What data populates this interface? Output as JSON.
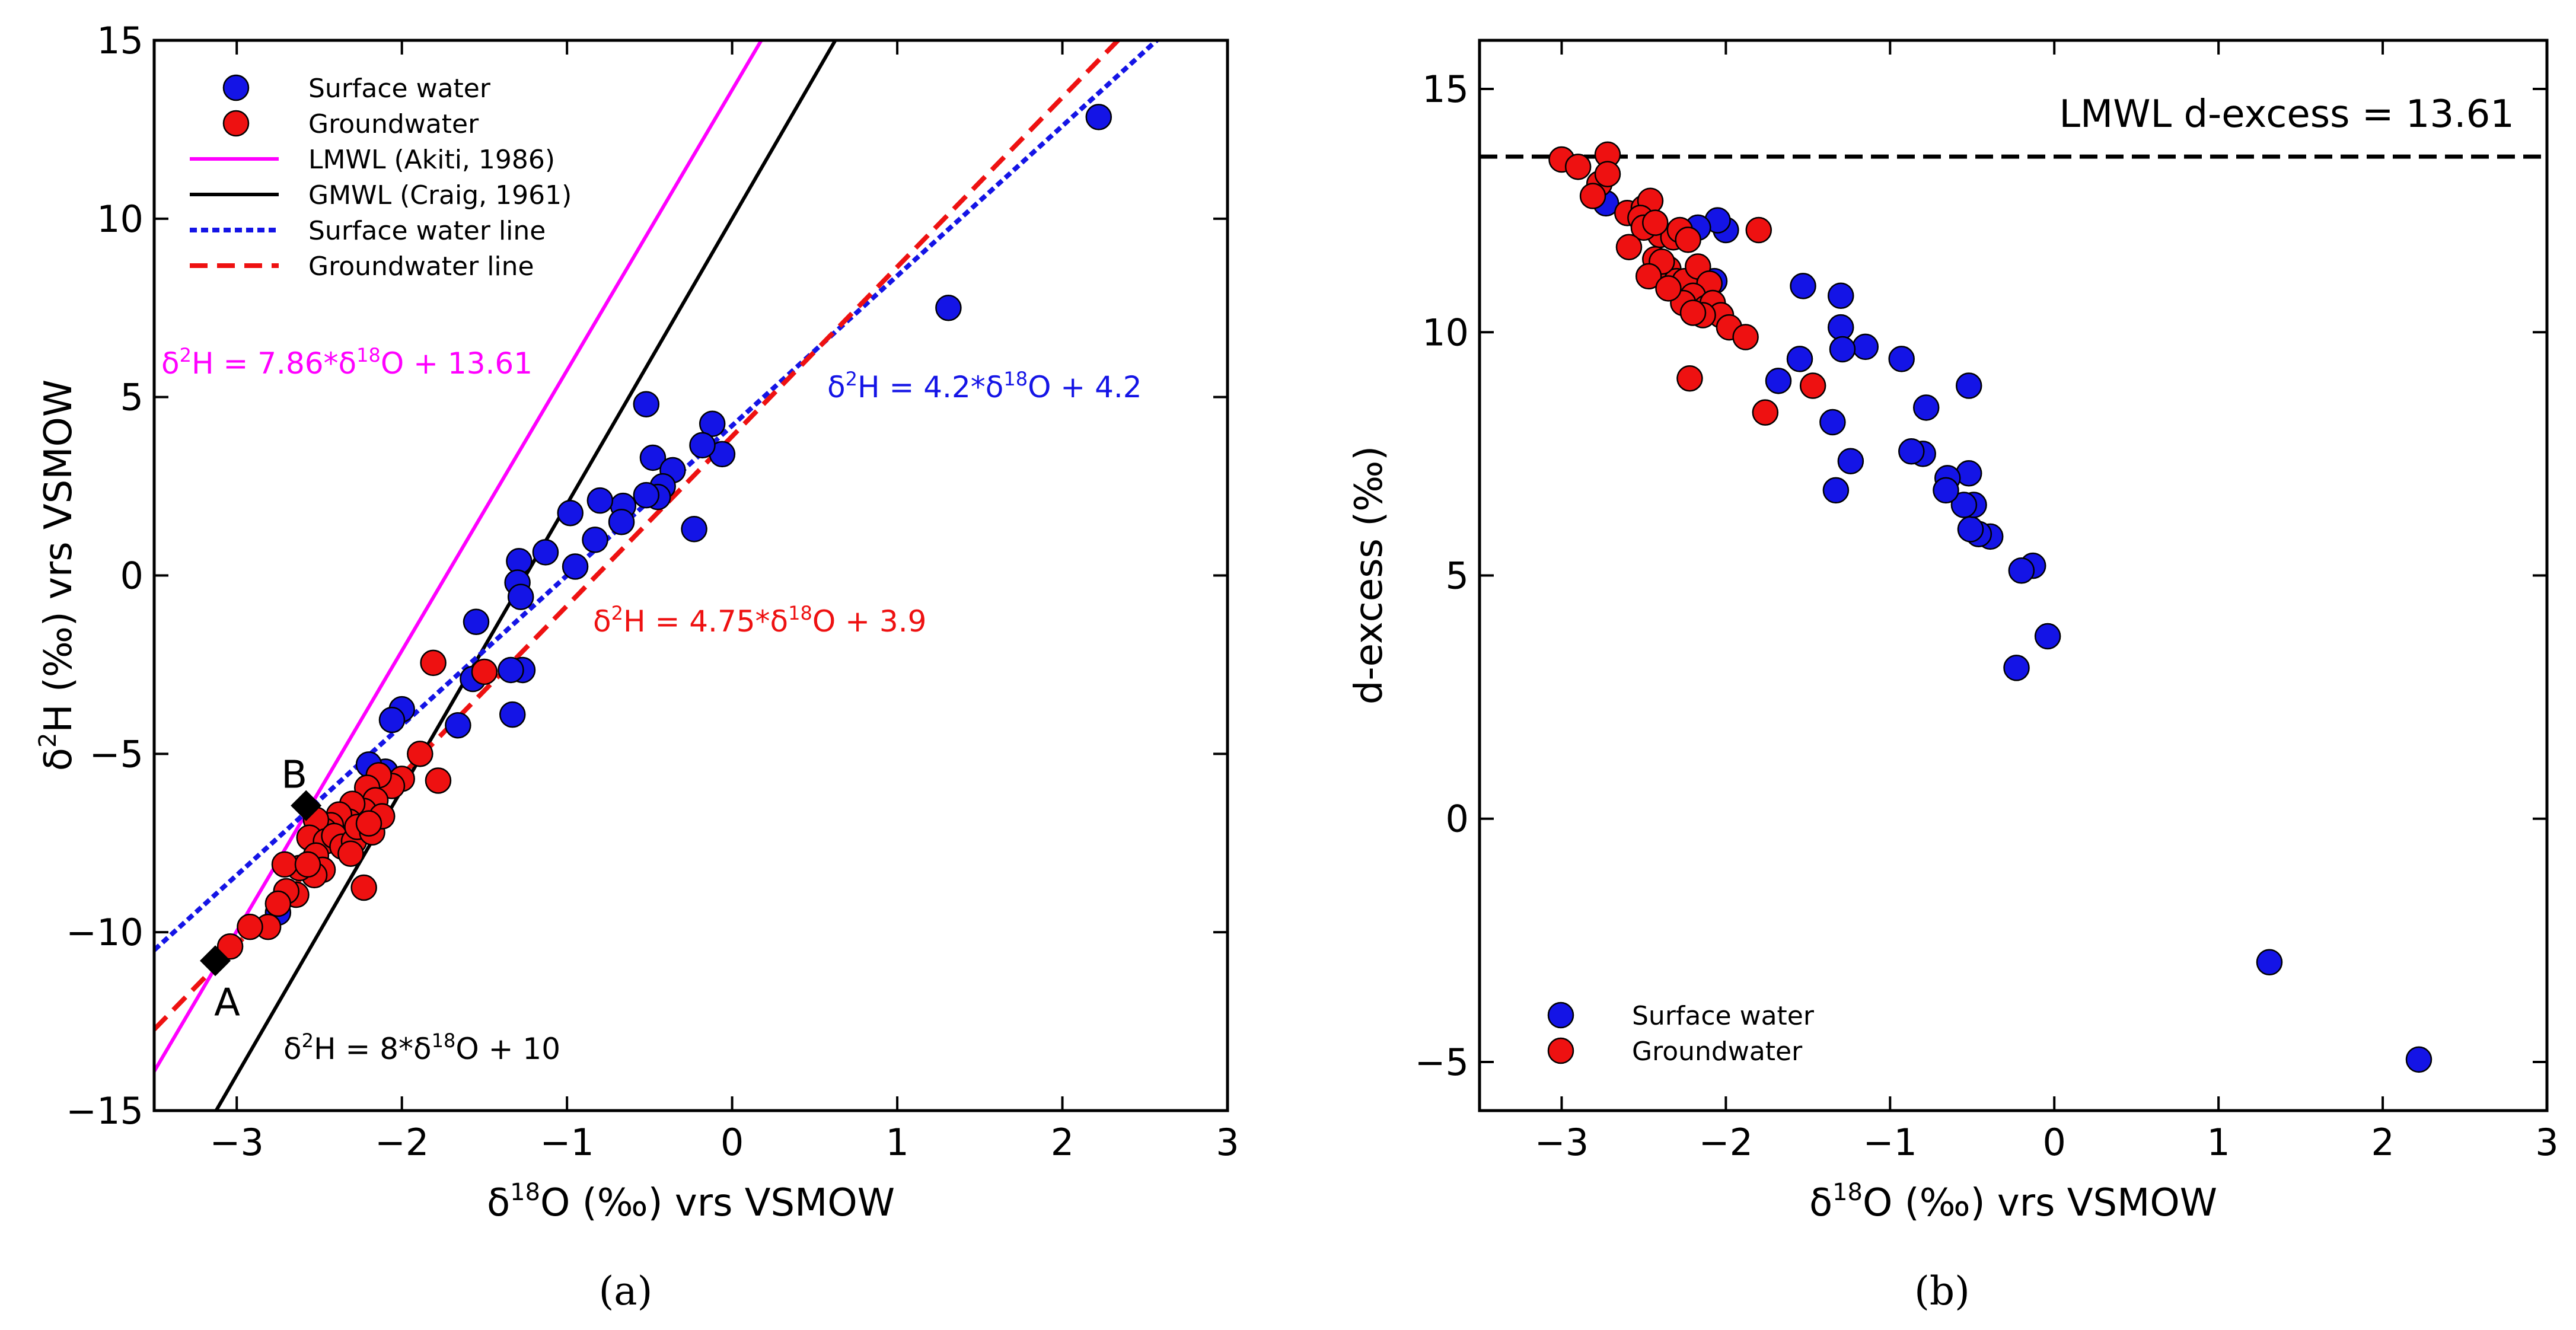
{
  "colors": {
    "surface": "#1414e6",
    "ground": "#ee1111",
    "lmwl": "#ff00ff",
    "gmwl": "#000000",
    "surface_line": "#1414e6",
    "ground_line": "#ee1111"
  },
  "chart_data": [
    {
      "type": "scatter",
      "panel": "a",
      "panel_label": "(a)",
      "xlabel": "δ18O (‰) vrs VSMOW",
      "ylabel": "δ2H (‰) vrs VSMOW",
      "xlim": [
        -3.5,
        3
      ],
      "ylim": [
        -15,
        15
      ],
      "xticks": [
        -3,
        -2,
        -1,
        0,
        1,
        2,
        3
      ],
      "yticks": [
        -15,
        -10,
        -5,
        0,
        5,
        10,
        15
      ],
      "xtick_labels": [
        "−3",
        "−2",
        "−1",
        "0",
        "1",
        "2",
        "3"
      ],
      "ytick_labels": [
        "−15",
        "−10",
        "−5",
        "0",
        "5",
        "10",
        "15"
      ],
      "legend_position": "top-left",
      "legend": [
        "Surface water",
        "Groundwater",
        "LMWL (Akiti, 1986)",
        "GMWL (Craig, 1961)",
        "Surface water line",
        "Groundwater line"
      ],
      "lines": [
        {
          "name": "LMWL (Akiti, 1986)",
          "slope": 7.86,
          "intercept": 13.61,
          "style": "solid",
          "color": "#ff00ff"
        },
        {
          "name": "GMWL (Craig, 1961)",
          "slope": 8,
          "intercept": 10,
          "style": "solid",
          "color": "#000000"
        },
        {
          "name": "Surface water line",
          "slope": 4.2,
          "intercept": 4.2,
          "style": "dotted",
          "color": "#1414e6"
        },
        {
          "name": "Groundwater line",
          "slope": 4.75,
          "intercept": 3.9,
          "style": "dashed",
          "color": "#ee1111"
        }
      ],
      "annotations": {
        "lmwl_eq": {
          "pre": "δ",
          "sup1": "2",
          "mid": "H = 7.86*δ",
          "sup2": "18",
          "post": "O + 13.61"
        },
        "sw_eq": {
          "pre": "δ",
          "sup1": "2",
          "mid": "H = 4.2*δ",
          "sup2": "18",
          "post": "O + 4.2"
        },
        "gw_eq": {
          "pre": "δ",
          "sup1": "2",
          "mid": "H = 4.75*δ",
          "sup2": "18",
          "post": "O + 3.9"
        },
        "gmwl_eq": {
          "pre": "δ",
          "sup1": "2",
          "mid": "H = 8*δ",
          "sup2": "18",
          "post": "O + 10"
        }
      },
      "markers": [
        {
          "label": "A",
          "x": -3.13,
          "y": -10.8
        },
        {
          "label": "B",
          "x": -2.58,
          "y": -6.45
        }
      ],
      "series": [
        {
          "name": "Surface water",
          "points": [
            [
              2.22,
              12.85
            ],
            [
              1.31,
              7.5
            ],
            [
              -0.12,
              4.25
            ],
            [
              -0.06,
              3.4
            ],
            [
              -0.18,
              3.65
            ],
            [
              -0.52,
              4.8
            ],
            [
              -0.48,
              3.3
            ],
            [
              -0.36,
              2.95
            ],
            [
              -0.42,
              2.5
            ],
            [
              -0.45,
              2.2
            ],
            [
              -0.52,
              2.25
            ],
            [
              -0.66,
              1.95
            ],
            [
              -0.8,
              2.1
            ],
            [
              -0.67,
              1.5
            ],
            [
              -0.23,
              1.3
            ],
            [
              -0.98,
              1.75
            ],
            [
              -0.83,
              1.0
            ],
            [
              -1.13,
              0.65
            ],
            [
              -0.95,
              0.25
            ],
            [
              -1.29,
              0.4
            ],
            [
              -1.3,
              -0.2
            ],
            [
              -1.28,
              -0.6
            ],
            [
              -1.27,
              -2.65
            ],
            [
              -1.34,
              -2.65
            ],
            [
              -1.33,
              -3.9
            ],
            [
              -1.55,
              -1.3
            ],
            [
              -1.57,
              -2.9
            ],
            [
              -1.66,
              -4.2
            ],
            [
              -2.0,
              -3.75
            ],
            [
              -2.06,
              -4.05
            ],
            [
              -2.1,
              -5.5
            ],
            [
              -2.2,
              -5.3
            ],
            [
              -2.75,
              -9.45
            ]
          ]
        },
        {
          "name": "Groundwater",
          "points": [
            [
              -1.81,
              -2.45
            ],
            [
              -1.5,
              -2.7
            ],
            [
              -1.78,
              -5.75
            ],
            [
              -1.89,
              -5.0
            ],
            [
              -2.0,
              -5.7
            ],
            [
              -2.06,
              -5.9
            ],
            [
              -2.14,
              -5.6
            ],
            [
              -2.21,
              -5.95
            ],
            [
              -2.16,
              -6.3
            ],
            [
              -2.23,
              -6.6
            ],
            [
              -2.3,
              -6.4
            ],
            [
              -2.32,
              -6.9
            ],
            [
              -2.38,
              -6.7
            ],
            [
              -2.43,
              -7.0
            ],
            [
              -2.47,
              -7.15
            ],
            [
              -2.52,
              -6.85
            ],
            [
              -2.56,
              -7.35
            ],
            [
              -2.46,
              -7.45
            ],
            [
              -2.41,
              -7.3
            ],
            [
              -2.36,
              -7.6
            ],
            [
              -2.29,
              -7.45
            ],
            [
              -2.31,
              -7.8
            ],
            [
              -2.27,
              -7.05
            ],
            [
              -2.18,
              -7.2
            ],
            [
              -2.12,
              -6.75
            ],
            [
              -2.2,
              -6.95
            ],
            [
              -2.52,
              -7.85
            ],
            [
              -2.48,
              -8.25
            ],
            [
              -2.53,
              -8.4
            ],
            [
              -2.62,
              -8.2
            ],
            [
              -2.71,
              -8.1
            ],
            [
              -2.57,
              -8.1
            ],
            [
              -2.23,
              -8.75
            ],
            [
              -2.64,
              -8.95
            ],
            [
              -2.7,
              -8.85
            ],
            [
              -2.75,
              -9.2
            ],
            [
              -2.81,
              -9.85
            ],
            [
              -2.92,
              -9.85
            ],
            [
              -3.04,
              -10.4
            ]
          ]
        }
      ]
    },
    {
      "type": "scatter",
      "panel": "b",
      "panel_label": "(b)",
      "xlabel": "δ18O (‰) vrs VSMOW",
      "ylabel": "d-excess (‰)",
      "xlim": [
        -3.5,
        3
      ],
      "ylim": [
        -6,
        16
      ],
      "xticks": [
        -3,
        -2,
        -1,
        0,
        1,
        2,
        3
      ],
      "yticks": [
        -5,
        0,
        5,
        10,
        15
      ],
      "xtick_labels": [
        "−3",
        "−2",
        "−1",
        "0",
        "1",
        "2",
        "3"
      ],
      "ytick_labels": [
        "−5",
        "0",
        "5",
        "10",
        "15"
      ],
      "legend_position": "bottom-left",
      "legend": [
        "Surface water",
        "Groundwater"
      ],
      "hline": {
        "y": 13.61,
        "style": "dashed",
        "color": "#000000",
        "label": "LMWL d-excess = 13.61"
      },
      "series": [
        {
          "name": "Surface water",
          "points": [
            [
              2.22,
              -4.95
            ],
            [
              1.31,
              -2.95
            ],
            [
              -0.04,
              3.75
            ],
            [
              -0.23,
              3.1
            ],
            [
              -0.13,
              5.2
            ],
            [
              -0.2,
              5.1
            ],
            [
              -0.39,
              5.8
            ],
            [
              -0.46,
              5.85
            ],
            [
              -0.51,
              5.95
            ],
            [
              -0.49,
              6.45
            ],
            [
              -0.55,
              6.45
            ],
            [
              -0.52,
              7.1
            ],
            [
              -0.52,
              8.9
            ],
            [
              -0.65,
              7.0
            ],
            [
              -0.66,
              6.75
            ],
            [
              -0.8,
              7.5
            ],
            [
              -0.87,
              7.55
            ],
            [
              -0.78,
              8.45
            ],
            [
              -0.93,
              9.45
            ],
            [
              -1.15,
              9.7
            ],
            [
              -1.3,
              10.1
            ],
            [
              -1.29,
              9.65
            ],
            [
              -1.3,
              10.75
            ],
            [
              -1.53,
              10.95
            ],
            [
              -1.55,
              9.45
            ],
            [
              -1.68,
              9.0
            ],
            [
              -1.24,
              7.35
            ],
            [
              -1.33,
              6.75
            ],
            [
              -1.35,
              8.15
            ],
            [
              -2.0,
              12.1
            ],
            [
              -2.07,
              11.05
            ],
            [
              -2.05,
              12.3
            ],
            [
              -2.17,
              12.15
            ],
            [
              -2.73,
              12.65
            ]
          ]
        },
        {
          "name": "Groundwater",
          "points": [
            [
              -3.0,
              13.55
            ],
            [
              -2.9,
              13.4
            ],
            [
              -2.72,
              13.65
            ],
            [
              -2.77,
              13.05
            ],
            [
              -2.72,
              13.25
            ],
            [
              -2.81,
              12.8
            ],
            [
              -2.6,
              12.45
            ],
            [
              -2.5,
              12.55
            ],
            [
              -2.46,
              12.7
            ],
            [
              -2.52,
              12.35
            ],
            [
              -2.4,
              12.0
            ],
            [
              -2.32,
              11.95
            ],
            [
              -2.28,
              12.1
            ],
            [
              -2.23,
              11.9
            ],
            [
              -2.5,
              12.15
            ],
            [
              -2.59,
              11.75
            ],
            [
              -2.43,
              11.5
            ],
            [
              -2.35,
              11.3
            ],
            [
              -2.3,
              11.05
            ],
            [
              -2.25,
              11.05
            ],
            [
              -2.17,
              11.35
            ],
            [
              -2.1,
              11.0
            ],
            [
              -2.2,
              10.75
            ],
            [
              -2.26,
              10.6
            ],
            [
              -2.12,
              10.5
            ],
            [
              -2.08,
              10.6
            ],
            [
              -2.03,
              10.35
            ],
            [
              -1.98,
              10.1
            ],
            [
              -1.88,
              9.9
            ],
            [
              -2.14,
              10.35
            ],
            [
              -2.2,
              10.4
            ],
            [
              -1.8,
              12.1
            ],
            [
              -1.47,
              8.9
            ],
            [
              -1.76,
              8.35
            ],
            [
              -2.22,
              9.05
            ],
            [
              -2.43,
              12.25
            ],
            [
              -2.39,
              11.45
            ],
            [
              -2.47,
              11.15
            ],
            [
              -2.35,
              10.9
            ]
          ]
        }
      ]
    }
  ]
}
